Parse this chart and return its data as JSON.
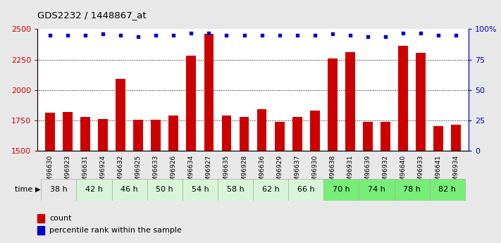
{
  "title": "GDS2232 / 1448867_at",
  "samples": [
    "GSM96630",
    "GSM96923",
    "GSM96631",
    "GSM96924",
    "GSM96632",
    "GSM96925",
    "GSM96633",
    "GSM96926",
    "GSM96634",
    "GSM96927",
    "GSM96635",
    "GSM96928",
    "GSM96636",
    "GSM96929",
    "GSM96637",
    "GSM96930",
    "GSM96638",
    "GSM96931",
    "GSM96639",
    "GSM96932",
    "GSM96640",
    "GSM96933",
    "GSM96641",
    "GSM96934"
  ],
  "counts": [
    1810,
    1820,
    1775,
    1760,
    2090,
    1755,
    1757,
    1790,
    2280,
    2460,
    1790,
    1775,
    1840,
    1740,
    1775,
    1830,
    2260,
    2310,
    1740,
    1740,
    2365,
    2305,
    1700,
    1715
  ],
  "percentile_ranks": [
    95,
    95,
    95,
    96,
    95,
    94,
    95,
    95,
    97,
    97,
    95,
    95,
    95,
    95,
    95,
    95,
    96,
    95,
    94,
    94,
    97,
    97,
    95,
    95
  ],
  "time_groups": [
    {
      "label": "38 h",
      "indices": [
        0,
        1
      ],
      "color": "#e8e8e8"
    },
    {
      "label": "42 h",
      "indices": [
        2,
        3
      ],
      "color": "#d8f5d8"
    },
    {
      "label": "46 h",
      "indices": [
        4,
        5
      ],
      "color": "#d8f5d8"
    },
    {
      "label": "50 h",
      "indices": [
        6,
        7
      ],
      "color": "#d8f5d8"
    },
    {
      "label": "54 h",
      "indices": [
        8,
        9
      ],
      "color": "#d8f5d8"
    },
    {
      "label": "58 h",
      "indices": [
        10,
        11
      ],
      "color": "#d8f5d8"
    },
    {
      "label": "62 h",
      "indices": [
        12,
        13
      ],
      "color": "#d8f5d8"
    },
    {
      "label": "66 h",
      "indices": [
        14,
        15
      ],
      "color": "#d8f5d8"
    },
    {
      "label": "70 h",
      "indices": [
        16,
        17
      ],
      "color": "#77ee77"
    },
    {
      "label": "74 h",
      "indices": [
        18,
        19
      ],
      "color": "#77ee77"
    },
    {
      "label": "78 h",
      "indices": [
        20,
        21
      ],
      "color": "#77ee77"
    },
    {
      "label": "82 h",
      "indices": [
        22,
        23
      ],
      "color": "#77ee77"
    }
  ],
  "bar_color": "#cc0000",
  "dot_color": "#0000cc",
  "ylim_left": [
    1500,
    2500
  ],
  "ylim_right": [
    0,
    100
  ],
  "yticks_left": [
    1500,
    1750,
    2000,
    2250,
    2500
  ],
  "yticks_right": [
    0,
    25,
    50,
    75,
    100
  ],
  "ytick_right_labels": [
    "0",
    "25",
    "50",
    "75",
    "100%"
  ],
  "ylabel_left_color": "#cc0000",
  "ylabel_right_color": "#0000cc",
  "bg_color": "#e8e8e8",
  "plot_bg": "#ffffff",
  "grid_lines": [
    1750,
    2000,
    2250
  ],
  "bar_width": 0.55
}
